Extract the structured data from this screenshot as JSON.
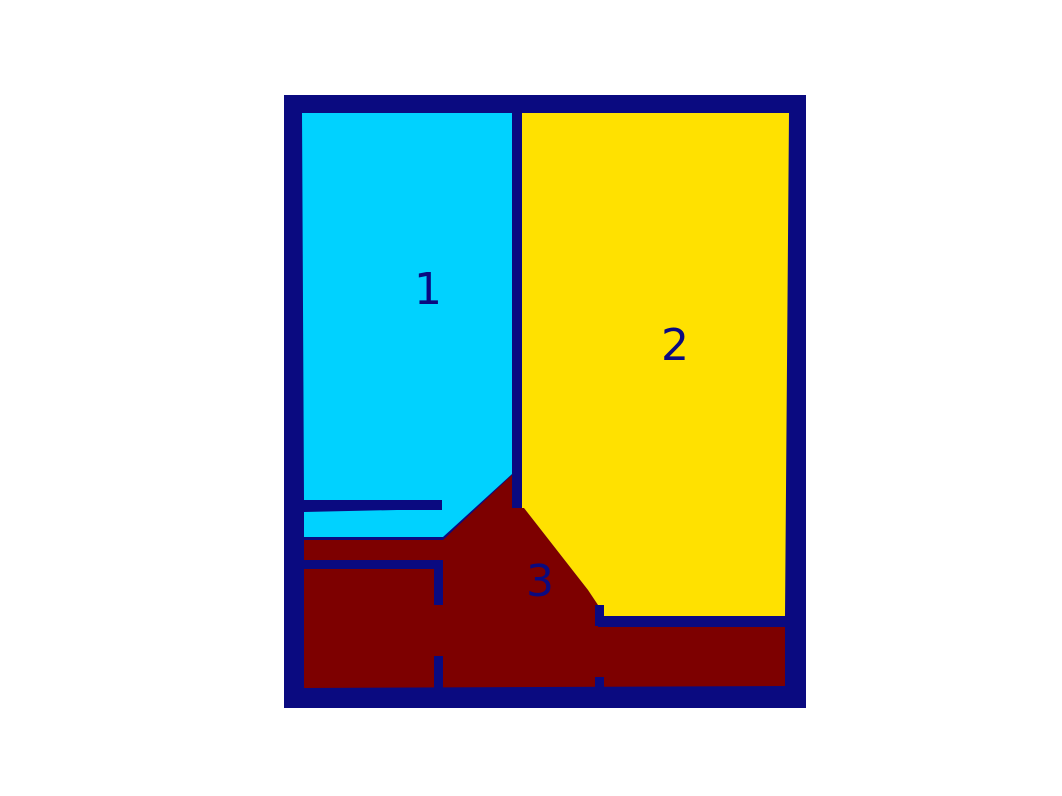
{
  "colors": {
    "background": "#ffffff",
    "wall": "#0a0a80",
    "label": "#0a0a80"
  },
  "rooms": [
    {
      "id": "1",
      "label": "1",
      "color": "#00d2ff"
    },
    {
      "id": "2",
      "label": "2",
      "color": "#ffe100"
    },
    {
      "id": "3",
      "label": "3",
      "color": "#7d0000"
    }
  ]
}
